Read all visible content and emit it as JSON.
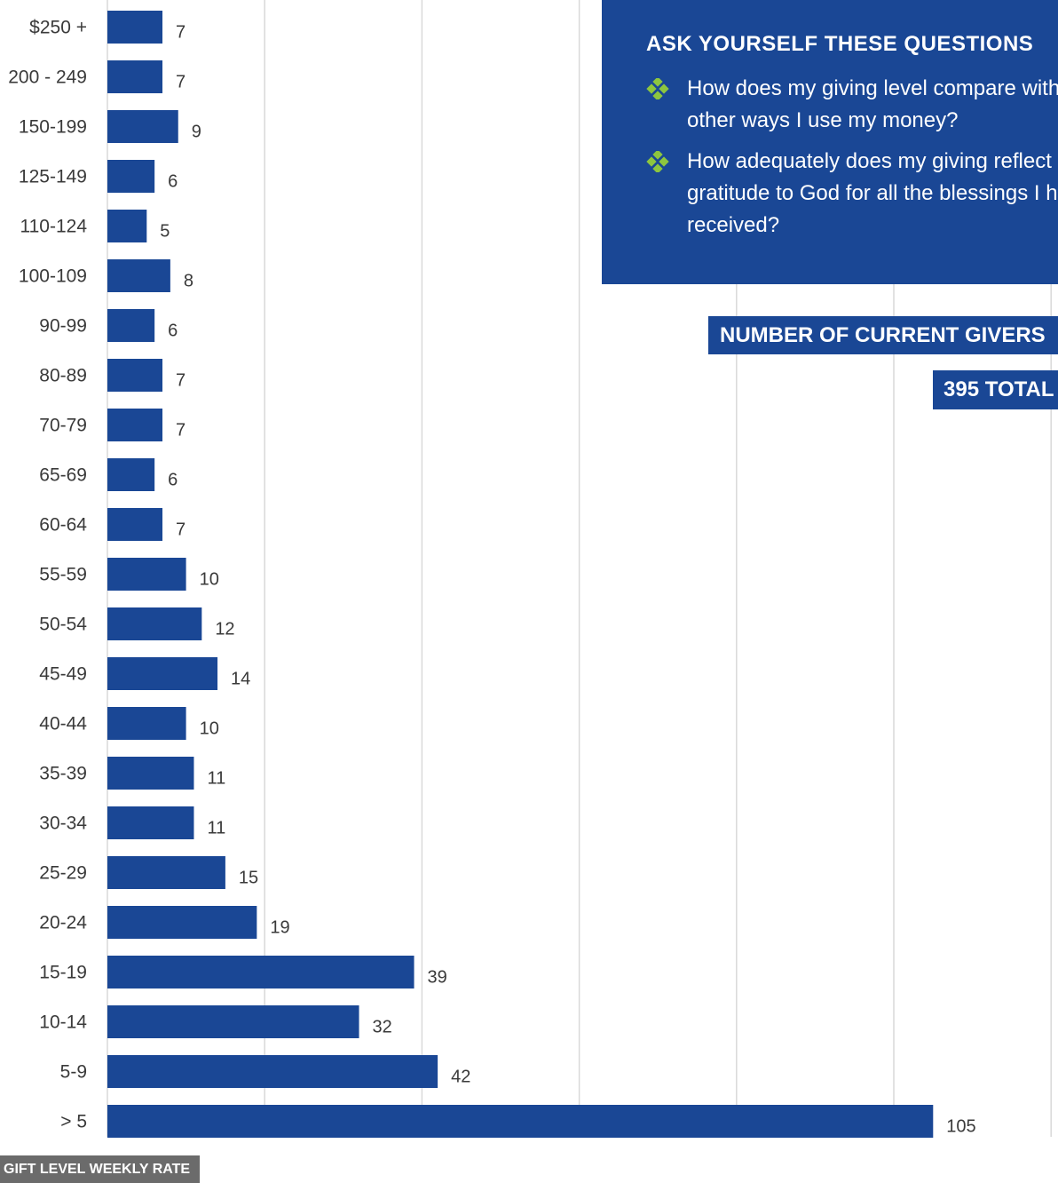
{
  "chart_data": {
    "type": "bar",
    "orientation": "horizontal",
    "categories": [
      "$250 +",
      "200 - 249",
      "150-199",
      "125-149",
      "110-124",
      "100-109",
      "90-99",
      "80-89",
      "70-79",
      "65-69",
      "60-64",
      "55-59",
      "50-54",
      "45-49",
      "40-44",
      "35-39",
      "30-34",
      "25-29",
      "20-24",
      "15-19",
      "10-14",
      "5-9",
      "> 5"
    ],
    "values": [
      7,
      7,
      9,
      6,
      5,
      8,
      6,
      7,
      7,
      6,
      7,
      10,
      12,
      14,
      10,
      11,
      11,
      15,
      19,
      39,
      32,
      42,
      105
    ],
    "xlabel": "GIFT LEVEL WEEKLY RATE",
    "ylabel": "",
    "xlim": [
      0,
      120
    ],
    "grid": true,
    "bar_color": "#1a4795"
  },
  "questions": {
    "title": "ASK YOURSELF THESE QUESTIONS",
    "items": [
      "How does my giving level compare with other ways I use my money?",
      "How adequately does my giving reflect my gratitude to God for all the blessings I have received?"
    ],
    "bullet_icon": "diamond-cluster-icon",
    "bullet_color": "#8dc63f",
    "background": "#1a4795"
  },
  "summary": {
    "givers_label": "NUMBER OF CURRENT GIVERS",
    "total_label": "395 TOTAL"
  }
}
